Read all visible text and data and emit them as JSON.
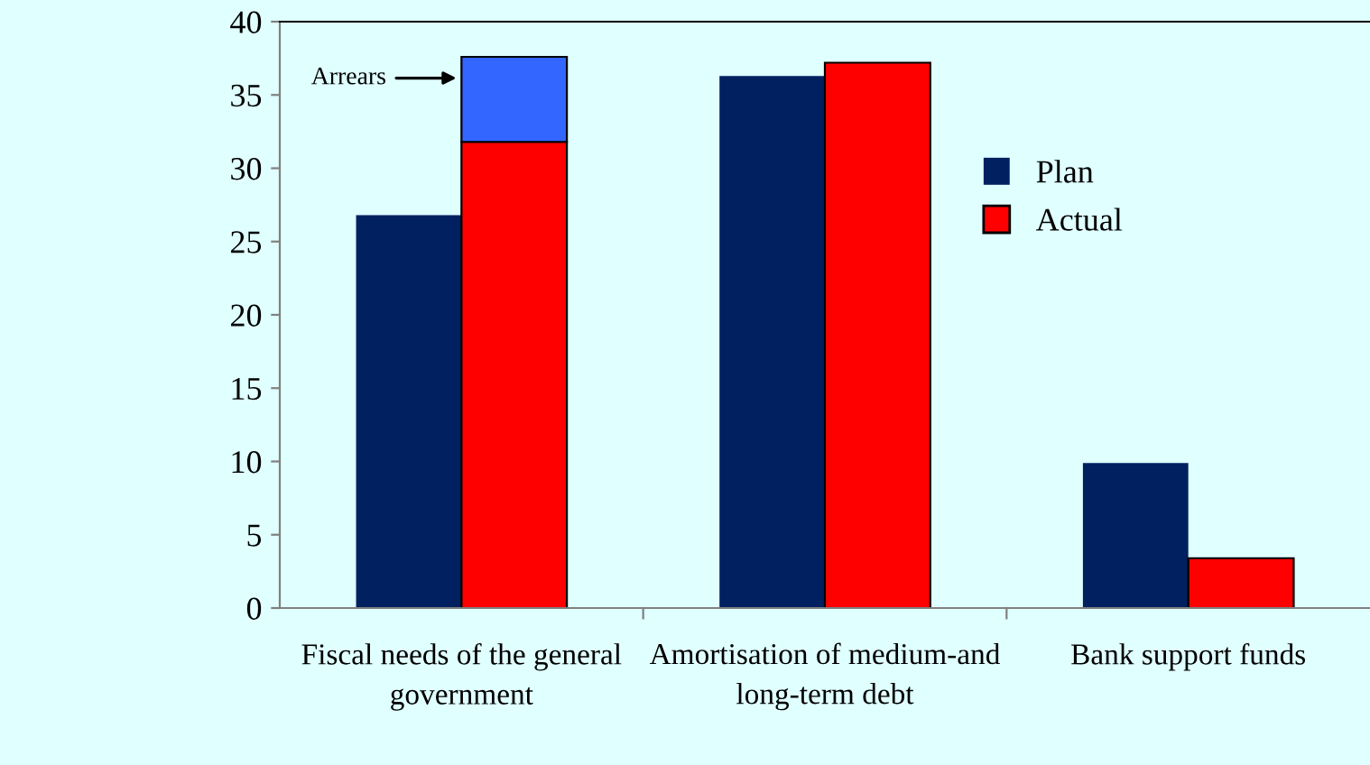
{
  "chart_data": {
    "type": "bar",
    "categories": [
      "Fiscal needs of the general government",
      "Amortisation of medium-and long-term debt",
      "Bank support funds"
    ],
    "series": [
      {
        "name": "Plan",
        "color": "#002060",
        "values": [
          26.8,
          36.3,
          9.9
        ]
      },
      {
        "name": "Actual",
        "color": "#ff0000",
        "values": [
          31.8,
          37.2,
          3.4
        ]
      },
      {
        "name": "Arrears",
        "color": "#3366ff",
        "values": [
          5.8,
          null,
          null
        ],
        "base": [
          31.8,
          null,
          null
        ]
      }
    ],
    "ylim": [
      0,
      40
    ],
    "yticks": [
      0,
      5,
      10,
      15,
      20,
      25,
      30,
      35,
      40
    ],
    "grid": false,
    "legend": "right"
  }
}
